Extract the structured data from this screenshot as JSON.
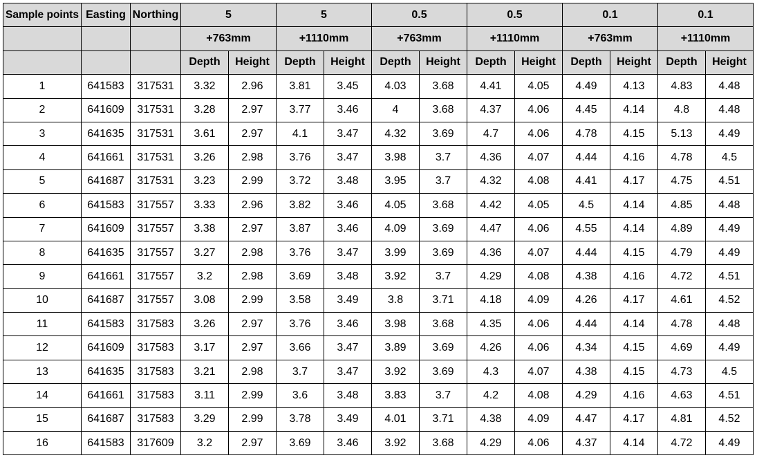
{
  "table": {
    "columns": [
      "Sample points",
      "Easting",
      "Northing"
    ],
    "groups": [
      {
        "level": "5",
        "offset": "+763mm"
      },
      {
        "level": "5",
        "offset": "+1110mm"
      },
      {
        "level": "0.5",
        "offset": "+763mm"
      },
      {
        "level": "0.5",
        "offset": "+1110mm"
      },
      {
        "level": "0.1",
        "offset": "+763mm"
      },
      {
        "level": "0.1",
        "offset": "+1110mm"
      }
    ],
    "sub_headers": [
      "Depth",
      "Height"
    ],
    "rows": [
      [
        "1",
        "641583",
        "317531",
        "3.32",
        "2.96",
        "3.81",
        "3.45",
        "4.03",
        "3.68",
        "4.41",
        "4.05",
        "4.49",
        "4.13",
        "4.83",
        "4.48"
      ],
      [
        "2",
        "641609",
        "317531",
        "3.28",
        "2.97",
        "3.77",
        "3.46",
        "4",
        "3.68",
        "4.37",
        "4.06",
        "4.45",
        "4.14",
        "4.8",
        "4.48"
      ],
      [
        "3",
        "641635",
        "317531",
        "3.61",
        "2.97",
        "4.1",
        "3.47",
        "4.32",
        "3.69",
        "4.7",
        "4.06",
        "4.78",
        "4.15",
        "5.13",
        "4.49"
      ],
      [
        "4",
        "641661",
        "317531",
        "3.26",
        "2.98",
        "3.76",
        "3.47",
        "3.98",
        "3.7",
        "4.36",
        "4.07",
        "4.44",
        "4.16",
        "4.78",
        "4.5"
      ],
      [
        "5",
        "641687",
        "317531",
        "3.23",
        "2.99",
        "3.72",
        "3.48",
        "3.95",
        "3.7",
        "4.32",
        "4.08",
        "4.41",
        "4.17",
        "4.75",
        "4.51"
      ],
      [
        "6",
        "641583",
        "317557",
        "3.33",
        "2.96",
        "3.82",
        "3.46",
        "4.05",
        "3.68",
        "4.42",
        "4.05",
        "4.5",
        "4.14",
        "4.85",
        "4.48"
      ],
      [
        "7",
        "641609",
        "317557",
        "3.38",
        "2.97",
        "3.87",
        "3.46",
        "4.09",
        "3.69",
        "4.47",
        "4.06",
        "4.55",
        "4.14",
        "4.89",
        "4.49"
      ],
      [
        "8",
        "641635",
        "317557",
        "3.27",
        "2.98",
        "3.76",
        "3.47",
        "3.99",
        "3.69",
        "4.36",
        "4.07",
        "4.44",
        "4.15",
        "4.79",
        "4.49"
      ],
      [
        "9",
        "641661",
        "317557",
        "3.2",
        "2.98",
        "3.69",
        "3.48",
        "3.92",
        "3.7",
        "4.29",
        "4.08",
        "4.38",
        "4.16",
        "4.72",
        "4.51"
      ],
      [
        "10",
        "641687",
        "317557",
        "3.08",
        "2.99",
        "3.58",
        "3.49",
        "3.8",
        "3.71",
        "4.18",
        "4.09",
        "4.26",
        "4.17",
        "4.61",
        "4.52"
      ],
      [
        "11",
        "641583",
        "317583",
        "3.26",
        "2.97",
        "3.76",
        "3.46",
        "3.98",
        "3.68",
        "4.35",
        "4.06",
        "4.44",
        "4.14",
        "4.78",
        "4.48"
      ],
      [
        "12",
        "641609",
        "317583",
        "3.17",
        "2.97",
        "3.66",
        "3.47",
        "3.89",
        "3.69",
        "4.26",
        "4.06",
        "4.34",
        "4.15",
        "4.69",
        "4.49"
      ],
      [
        "13",
        "641635",
        "317583",
        "3.21",
        "2.98",
        "3.7",
        "3.47",
        "3.92",
        "3.69",
        "4.3",
        "4.07",
        "4.38",
        "4.15",
        "4.73",
        "4.5"
      ],
      [
        "14",
        "641661",
        "317583",
        "3.11",
        "2.99",
        "3.6",
        "3.48",
        "3.83",
        "3.7",
        "4.2",
        "4.08",
        "4.29",
        "4.16",
        "4.63",
        "4.51"
      ],
      [
        "15",
        "641687",
        "317583",
        "3.29",
        "2.99",
        "3.78",
        "3.49",
        "4.01",
        "3.71",
        "4.38",
        "4.09",
        "4.47",
        "4.17",
        "4.81",
        "4.52"
      ],
      [
        "16",
        "641583",
        "317609",
        "3.2",
        "2.97",
        "3.69",
        "3.46",
        "3.92",
        "3.68",
        "4.29",
        "4.06",
        "4.37",
        "4.14",
        "4.72",
        "4.49"
      ]
    ]
  },
  "colors": {
    "header_bg": "#d9d9d9",
    "border": "#000000",
    "body_bg": "#ffffff"
  }
}
